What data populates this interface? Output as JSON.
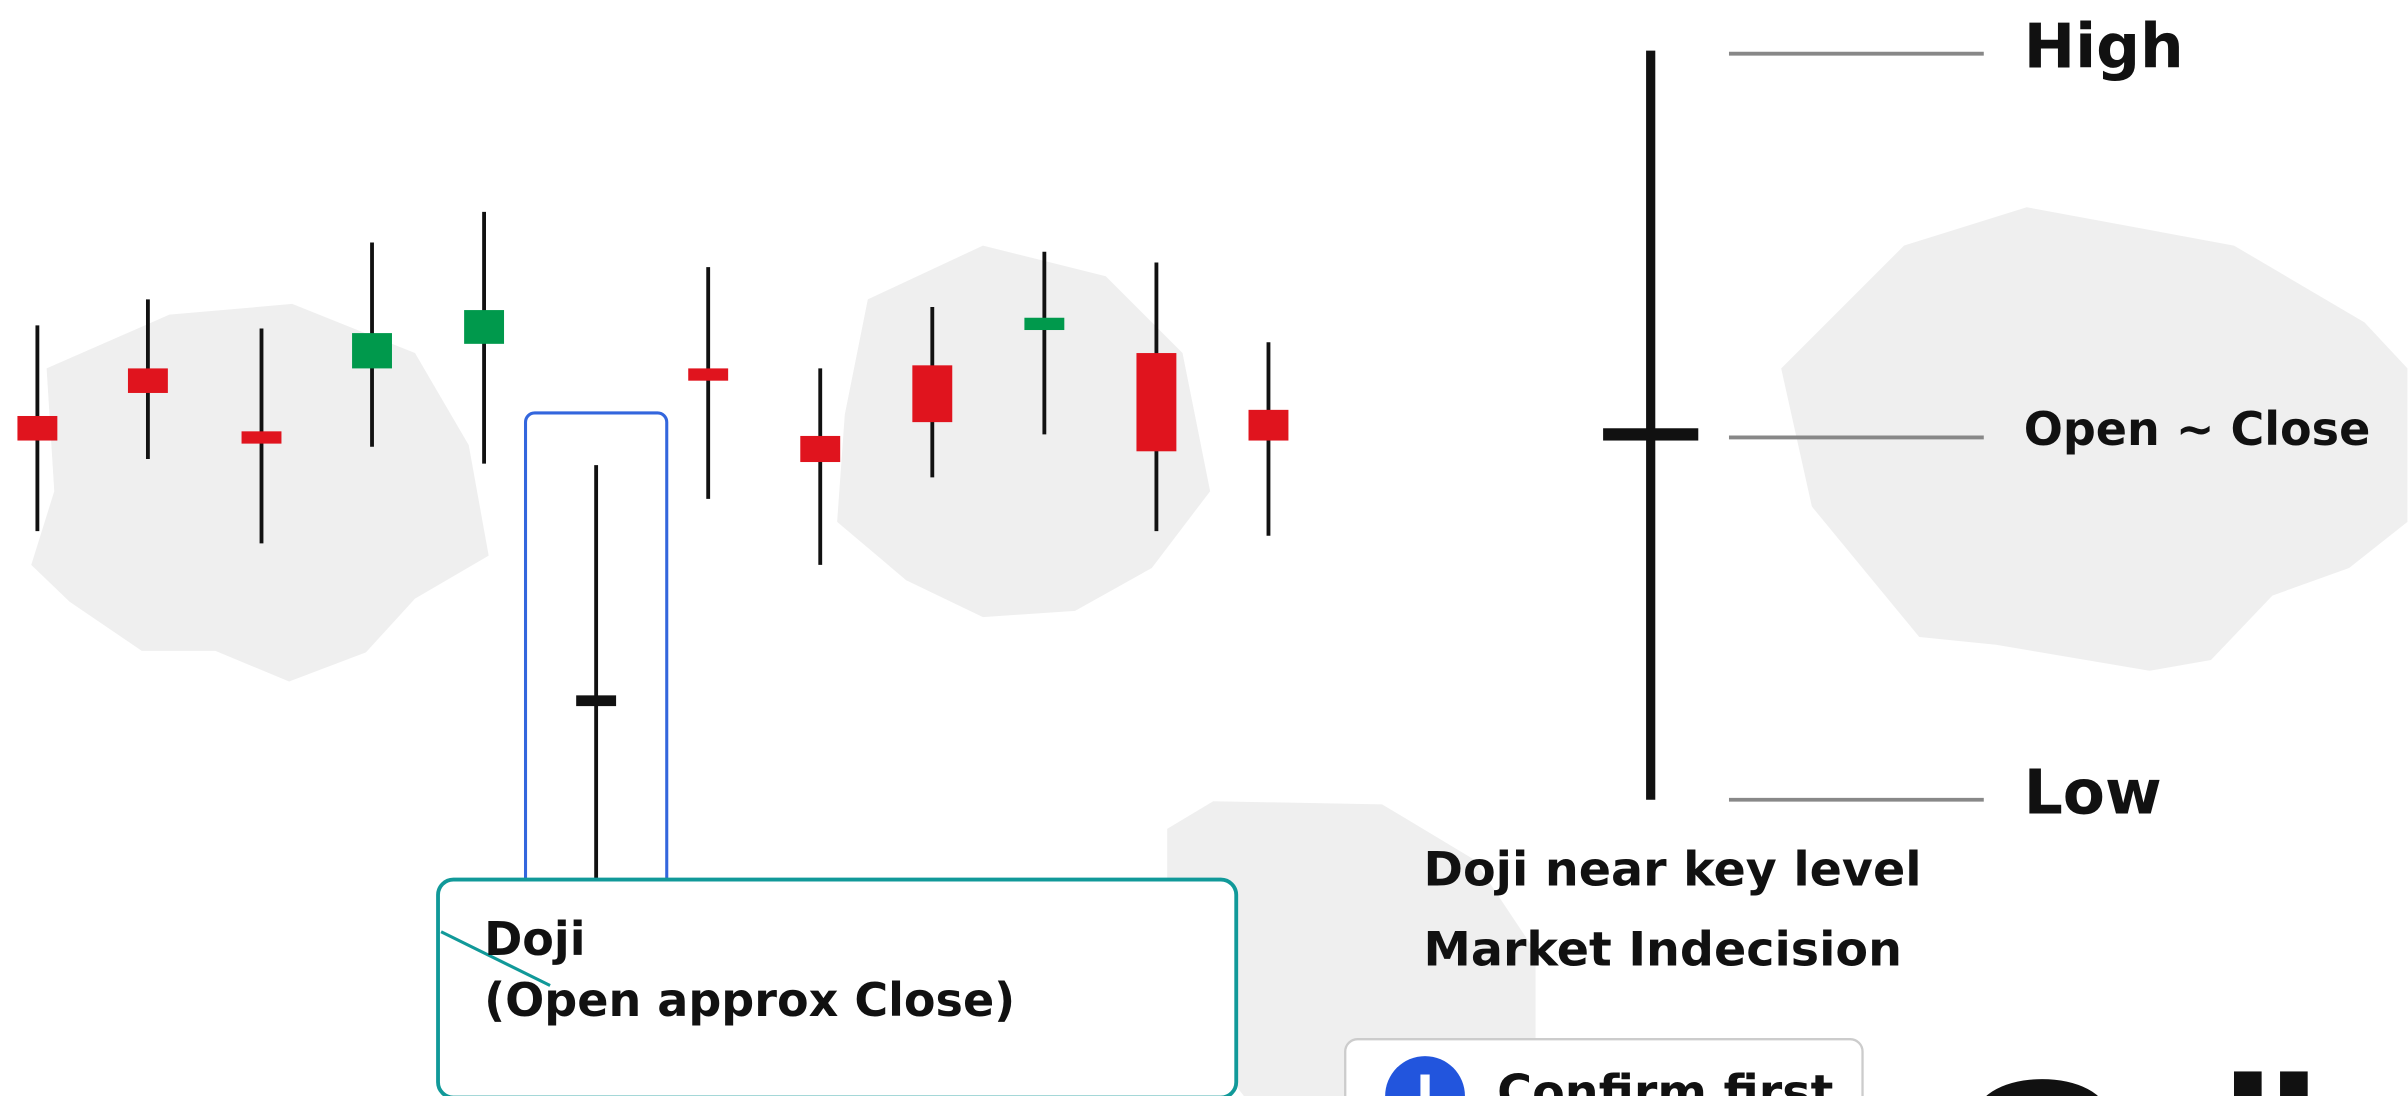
{
  "labels": {
    "high": "High",
    "open_close": "Open ~ Close",
    "low": "Low"
  },
  "notes": {
    "line1": "Doji near key level",
    "line2": "Market Indecision"
  },
  "callout": {
    "title": "Doji",
    "subtitle": "(Open approx Close)"
  },
  "info": {
    "text": "Confirm first"
  }
}
